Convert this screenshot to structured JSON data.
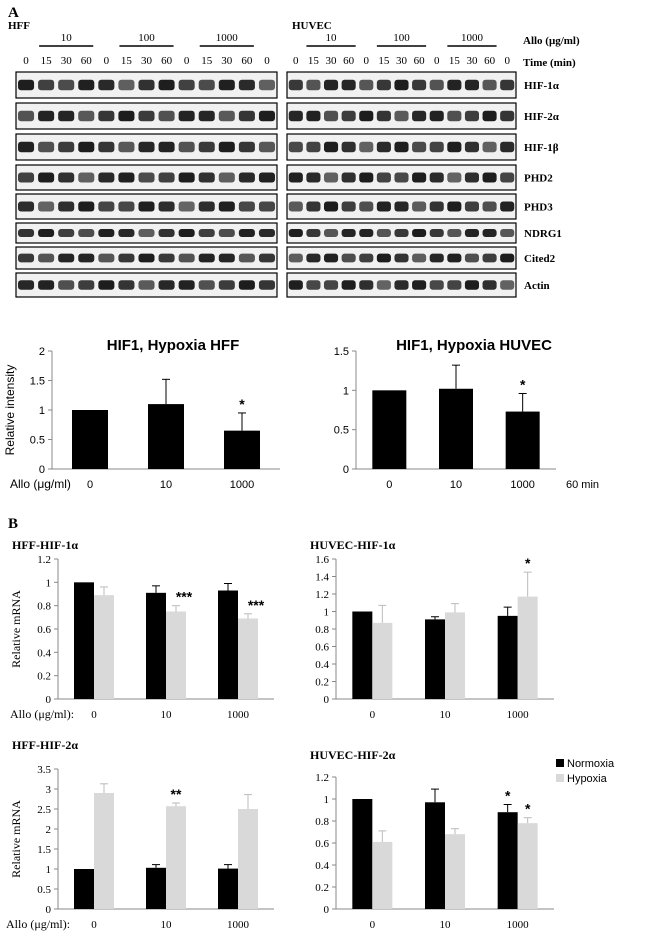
{
  "panel_a": {
    "label": "A",
    "cell_left": "HFF",
    "cell_right": "HUVEC",
    "dose_label": "Allo (μg/ml)",
    "time_label": "Time (min)",
    "doses": [
      "10",
      "100",
      "1000"
    ],
    "times": [
      "0",
      "15",
      "30",
      "60"
    ],
    "proteins": [
      "HIF-1α",
      "HIF-2α",
      "HIF-1β",
      "PHD2",
      "PHD3",
      "NDRG1",
      "Cited2",
      "Actin"
    ]
  },
  "panel_b": {
    "label": "B"
  },
  "legend": {
    "normoxia": "Normoxia",
    "hypoxia": "Hypoxia",
    "normoxia_color": "#000000",
    "hypoxia_color": "#d9d9d9"
  },
  "colors": {
    "bar": "#000000",
    "light": "#d9d9d9",
    "axis": "#888888"
  },
  "chart_data": [
    {
      "type": "bar",
      "title": "HIF1, Hypoxia HFF",
      "ylabel": "Relative intensity",
      "xaxis_prefix": "Allo (μg/ml)",
      "categories": [
        "0",
        "10",
        "1000"
      ],
      "values": [
        1.0,
        1.1,
        0.65
      ],
      "errors": [
        0.0,
        0.42,
        0.3
      ],
      "annotations": [
        "",
        "",
        "*"
      ],
      "ylim": [
        0,
        2
      ],
      "yticks": [
        "0",
        "0.5",
        "1",
        "1.5",
        "2"
      ]
    },
    {
      "type": "bar",
      "title": "HIF1, Hypoxia HUVEC",
      "ylabel": "",
      "xaxis_suffix": "60 min",
      "categories": [
        "0",
        "10",
        "1000"
      ],
      "values": [
        1.0,
        1.02,
        0.73
      ],
      "errors": [
        0.0,
        0.3,
        0.23
      ],
      "annotations": [
        "",
        "",
        "*"
      ],
      "ylim": [
        0,
        1.5
      ],
      "yticks": [
        "0",
        "0.5",
        "1",
        "1.5"
      ]
    },
    {
      "type": "bar",
      "title": "HFF-HIF-1α",
      "ylabel": "Relative mRNA",
      "xaxis_prefix": "Allo (μg/ml):",
      "categories": [
        "0",
        "10",
        "1000"
      ],
      "series": [
        {
          "values": [
            1.0,
            0.91,
            0.93
          ],
          "errors": [
            0.0,
            0.06,
            0.06
          ],
          "annotations": [
            "",
            "",
            ""
          ]
        },
        {
          "values": [
            0.89,
            0.75,
            0.69
          ],
          "errors": [
            0.07,
            0.05,
            0.04
          ],
          "annotations": [
            "",
            "***",
            "***"
          ]
        }
      ],
      "ylim": [
        0,
        1.2
      ],
      "yticks": [
        "0",
        "0.2",
        "0.4",
        "0.6",
        "0.8",
        "1",
        "1.2"
      ]
    },
    {
      "type": "bar",
      "title": "HUVEC-HIF-1α",
      "ylabel": "",
      "categories": [
        "0",
        "10",
        "1000"
      ],
      "series": [
        {
          "values": [
            1.0,
            0.91,
            0.95
          ],
          "errors": [
            0.0,
            0.03,
            0.1
          ],
          "annotations": [
            "",
            "",
            ""
          ]
        },
        {
          "values": [
            0.87,
            0.99,
            1.17
          ],
          "errors": [
            0.2,
            0.1,
            0.28
          ],
          "annotations": [
            "",
            "",
            "*"
          ]
        }
      ],
      "ylim": [
        0,
        1.6
      ],
      "yticks": [
        "0",
        "0.2",
        "0.4",
        "0.6",
        "0.8",
        "1",
        "1.2",
        "1.4",
        "1.6"
      ]
    },
    {
      "type": "bar",
      "title": "HFF-HIF-2α",
      "ylabel": "Relative mRNA",
      "xaxis_prefix": "Allo (μg/ml):",
      "categories": [
        "0",
        "10",
        "1000"
      ],
      "series": [
        {
          "values": [
            1.0,
            1.03,
            1.01
          ],
          "errors": [
            0.0,
            0.08,
            0.1
          ],
          "annotations": [
            "",
            "",
            ""
          ]
        },
        {
          "values": [
            2.9,
            2.57,
            2.5
          ],
          "errors": [
            0.23,
            0.08,
            0.36
          ],
          "annotations": [
            "",
            "**",
            ""
          ]
        }
      ],
      "ylim": [
        0,
        3.5
      ],
      "yticks": [
        "0",
        "0.5",
        "1",
        "1.5",
        "2",
        "2.5",
        "3",
        "3.5"
      ]
    },
    {
      "type": "bar",
      "title": "HUVEC-HIF-2α",
      "ylabel": "",
      "categories": [
        "0",
        "10",
        "1000"
      ],
      "series": [
        {
          "values": [
            1.0,
            0.97,
            0.88
          ],
          "errors": [
            0.0,
            0.12,
            0.07
          ],
          "annotations": [
            "",
            "",
            "*"
          ]
        },
        {
          "values": [
            0.61,
            0.68,
            0.78
          ],
          "errors": [
            0.1,
            0.05,
            0.05
          ],
          "annotations": [
            "",
            "",
            "*"
          ]
        }
      ],
      "ylim": [
        0,
        1.2
      ],
      "yticks": [
        "0",
        "0.2",
        "0.4",
        "0.6",
        "0.8",
        "1",
        "1.2"
      ]
    }
  ]
}
